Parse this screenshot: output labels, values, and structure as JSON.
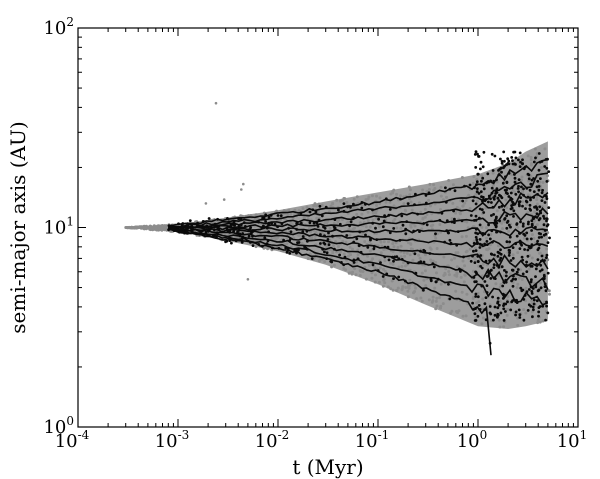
{
  "chart_data": {
    "type": "scatter",
    "title": "",
    "xlabel": "t (Myr)",
    "ylabel": "semi-major axis (AU)",
    "xscale": "log",
    "yscale": "log",
    "xlim": [
      0.0001,
      10
    ],
    "ylim": [
      1,
      100
    ],
    "grid": false,
    "legend": "none",
    "xticks": [
      {
        "base": "10",
        "exp": "-4",
        "value": 0.0001
      },
      {
        "base": "10",
        "exp": "-3",
        "value": 0.001
      },
      {
        "base": "10",
        "exp": "-2",
        "value": 0.01
      },
      {
        "base": "10",
        "exp": "-1",
        "value": 0.1
      },
      {
        "base": "10",
        "exp": "0",
        "value": 1
      },
      {
        "base": "10",
        "exp": "1",
        "value": 10
      }
    ],
    "yticks": [
      {
        "base": "10",
        "exp": "0",
        "value": 1
      },
      {
        "base": "10",
        "exp": "1",
        "value": 10
      },
      {
        "base": "10",
        "exp": "2",
        "value": 100
      }
    ],
    "colors": {
      "envelope": "#8c8c8c",
      "tracks": "#0a0a0a"
    },
    "series": [
      {
        "role": "envelope",
        "color": "#8c8c8c",
        "upper": {
          "x": [
            0.0003,
            0.001,
            0.003,
            0.01,
            0.03,
            0.1,
            0.3,
            1,
            2,
            3,
            5
          ],
          "y": [
            10,
            10.4,
            11.2,
            12.2,
            13.5,
            15,
            16.5,
            18.5,
            21,
            24,
            27
          ]
        },
        "lower": {
          "x": [
            0.0003,
            0.001,
            0.003,
            0.01,
            0.03,
            0.1,
            0.3,
            1,
            2,
            3,
            5
          ],
          "y": [
            10,
            9.5,
            8.6,
            7.6,
            6.5,
            5.2,
            4.1,
            3.2,
            3.1,
            3.2,
            3.4
          ]
        },
        "outliers": [
          {
            "x": 0.0024,
            "y": 42
          },
          {
            "x": 0.0045,
            "y": 16.5
          },
          {
            "x": 0.0043,
            "y": 15.5
          },
          {
            "x": 0.0029,
            "y": 13.8
          },
          {
            "x": 0.0019,
            "y": 13.2
          },
          {
            "x": 0.005,
            "y": 5.5
          }
        ]
      },
      {
        "role": "tracks",
        "color": "#0a0a0a",
        "tracks": [
          {
            "x": [
              0.0008,
              0.01,
              0.1,
              1,
              5
            ],
            "y": [
              10.2,
              11.7,
              13.4,
              16.5,
              22
            ]
          },
          {
            "x": [
              0.0008,
              0.01,
              0.1,
              1,
              5
            ],
            "y": [
              10.1,
              11.1,
              12.4,
              14.2,
              18
            ]
          },
          {
            "x": [
              0.0008,
              0.01,
              0.1,
              1,
              5
            ],
            "y": [
              10.05,
              10.6,
              11.3,
              12.5,
              15
            ]
          },
          {
            "x": [
              0.0008,
              0.01,
              0.1,
              1,
              5
            ],
            "y": [
              10,
              10.2,
              10.4,
              10.9,
              12
            ]
          },
          {
            "x": [
              0.0008,
              0.01,
              0.1,
              1,
              5
            ],
            "y": [
              10,
              9.8,
              9.6,
              9.5,
              10
            ]
          },
          {
            "x": [
              0.0008,
              0.01,
              0.1,
              1,
              5
            ],
            "y": [
              9.95,
              9.4,
              8.8,
              8.2,
              8
            ]
          },
          {
            "x": [
              0.0008,
              0.01,
              0.1,
              1,
              5
            ],
            "y": [
              9.9,
              9.0,
              8.0,
              7.0,
              6.5
            ]
          },
          {
            "x": [
              0.0008,
              0.01,
              0.1,
              1,
              5
            ],
            "y": [
              9.85,
              8.6,
              7.2,
              5.9,
              5.2
            ]
          },
          {
            "x": [
              0.0008,
              0.01,
              0.1,
              1,
              5
            ],
            "y": [
              9.8,
              8.2,
              6.5,
              4.9,
              4.2
            ]
          },
          {
            "x": [
              0.0008,
              0.01,
              0.1,
              1.2,
              1.35
            ],
            "y": [
              9.75,
              7.9,
              6.0,
              3.9,
              2.4
            ]
          }
        ]
      }
    ]
  }
}
